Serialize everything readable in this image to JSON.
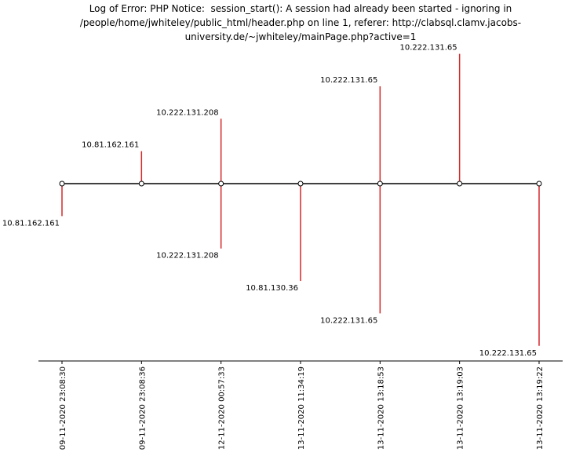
{
  "chart_data": {
    "type": "timeline",
    "title_lines": [
      "Log of Error: PHP Notice:  session_start(): A session had already been started - ignoring in",
      "/people/home/jwhiteley/public_html/header.php on line 1, referer: http://clabsql.clamv.jacobs-",
      "university.de/~jwhiteley/mainPage.php?active=1"
    ],
    "xlabel": "",
    "ylabel": "",
    "grid": false,
    "legend": "none",
    "colors": {
      "stem": "#d62728",
      "baseline": "#000000",
      "marker_fill": "#ffffff",
      "marker_edge": "#000000"
    },
    "events": [
      {
        "x": "09-11-2020 23:08:30",
        "level": -5,
        "label": "10.81.162.161"
      },
      {
        "x": "09-11-2020 23:08:36",
        "level": 5,
        "label": "10.81.162.161"
      },
      {
        "x": "12-11-2020 00:57:33",
        "level": -10,
        "label": "10.222.131.208"
      },
      {
        "x": "12-11-2020 00:57:33",
        "level": 10,
        "label": "10.222.131.208"
      },
      {
        "x": "13-11-2020 11:34:19",
        "level": -15,
        "label": "10.81.130.36"
      },
      {
        "x": "13-11-2020 13:18:53",
        "level": 15,
        "label": "10.222.131.65"
      },
      {
        "x": "13-11-2020 13:18:53",
        "level": -20,
        "label": "10.222.131.65"
      },
      {
        "x": "13-11-2020 13:19:03",
        "level": 20,
        "label": "10.222.131.65"
      },
      {
        "x": "13-11-2020 13:19:22",
        "level": -25,
        "label": "10.222.131.65"
      }
    ],
    "x_ticks": [
      "09-11-2020 23:08:30",
      "09-11-2020 23:08:36",
      "12-11-2020 00:57:33",
      "13-11-2020 11:34:19",
      "13-11-2020 13:18:53",
      "13-11-2020 13:19:03",
      "13-11-2020 13:19:22"
    ]
  }
}
